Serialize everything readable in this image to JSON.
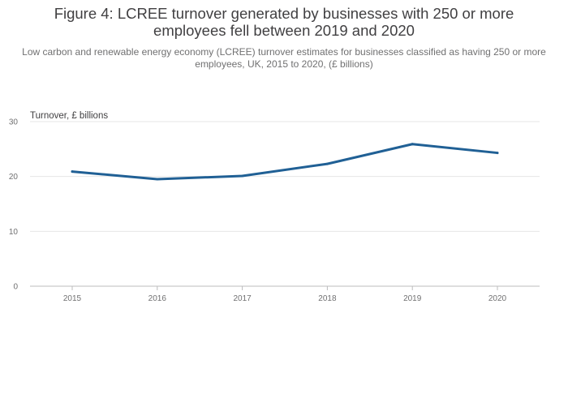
{
  "title": "Figure 4: LCREE turnover generated by businesses with 250 or more employees fell between 2019 and 2020",
  "subtitle": "Low carbon and renewable energy economy (LCREE) turnover estimates for businesses classified as having 250 or more employees, UK, 2015 to 2020, (£ billions)",
  "colors": {
    "line": "#206095",
    "grid": "#e6e6e6",
    "axis": "#bcbcbd"
  },
  "chart_data": {
    "type": "line",
    "title": "Figure 4: LCREE turnover generated by businesses with 250 or more employees fell between 2019 and 2020",
    "ylabel": "Turnover, £ billions",
    "xlabel": "",
    "categories": [
      "2015",
      "2016",
      "2017",
      "2018",
      "2019",
      "2020"
    ],
    "series": [
      {
        "values": [
          20.9,
          19.5,
          20.1,
          22.3,
          25.9,
          24.3
        ]
      }
    ],
    "ylim": [
      0,
      30
    ],
    "yticks": [
      0,
      10,
      20,
      30
    ],
    "grid": true,
    "legend": "none"
  }
}
